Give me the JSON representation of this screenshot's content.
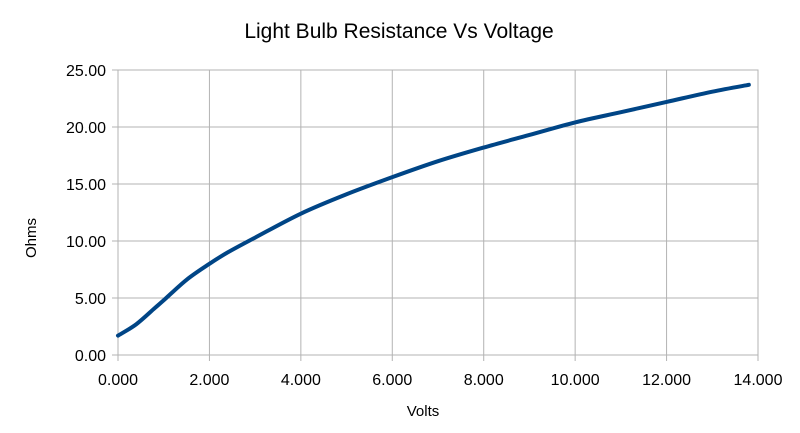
{
  "chart_data": {
    "type": "line",
    "title": "Light Bulb Resistance Vs Voltage",
    "xlabel": "Volts",
    "ylabel": "Ohms",
    "xlim": [
      0,
      14
    ],
    "ylim": [
      0,
      25
    ],
    "x_ticks": [
      0,
      2,
      4,
      6,
      8,
      10,
      12,
      14
    ],
    "y_ticks": [
      0,
      5,
      10,
      15,
      20,
      25
    ],
    "x_tick_labels": [
      "0.000",
      "2.000",
      "4.000",
      "6.000",
      "8.000",
      "10.000",
      "12.000",
      "14.000"
    ],
    "y_tick_labels": [
      "0.00",
      "5.00",
      "10.00",
      "15.00",
      "20.00",
      "25.00"
    ],
    "grid": true,
    "legend": "none",
    "series": [
      {
        "color": "#004586",
        "x": [
          0.0,
          0.4,
          0.8,
          1.0,
          1.5,
          2.0,
          2.4,
          3.0,
          4.0,
          5.0,
          6.0,
          7.0,
          8.0,
          9.0,
          10.0,
          11.0,
          12.0,
          13.0,
          13.8
        ],
        "y": [
          1.7,
          2.7,
          4.1,
          4.8,
          6.6,
          8.0,
          9.0,
          10.3,
          12.4,
          14.1,
          15.6,
          17.0,
          18.2,
          19.3,
          20.4,
          21.3,
          22.2,
          23.1,
          23.7
        ]
      }
    ]
  }
}
